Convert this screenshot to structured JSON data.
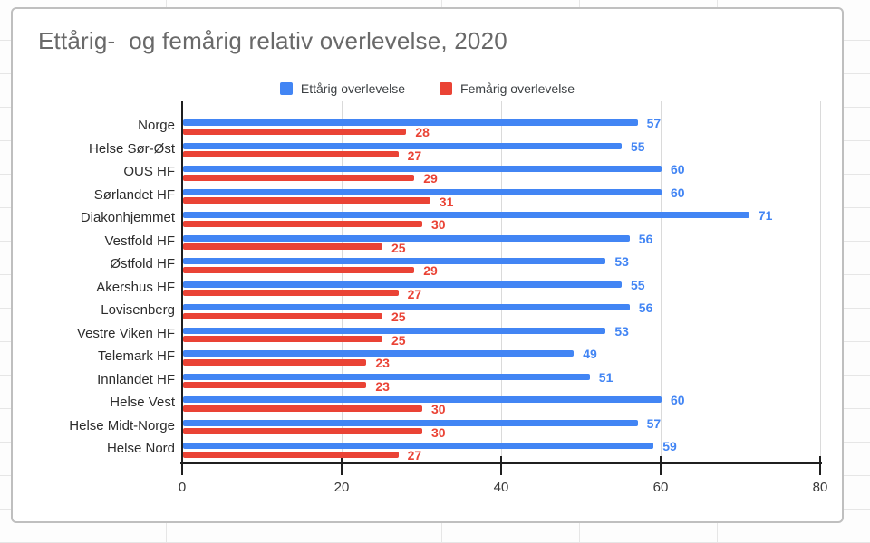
{
  "app": {
    "context": "spreadsheet-embedded-chart"
  },
  "chart_data": {
    "type": "bar",
    "orientation": "horizontal",
    "title": "Ettårig-  og femårig relativ overlevelse, 2020",
    "categories": [
      "Norge",
      "Helse Sør-Øst",
      "OUS HF",
      "Sørlandet HF",
      "Diakonhjemmet",
      "Vestfold HF",
      "Østfold HF",
      "Akershus HF",
      "Lovisenberg",
      "Vestre Viken HF",
      "Telemark HF",
      "Innlandet HF",
      "Helse Vest",
      "Helse Midt-Norge",
      "Helse Nord"
    ],
    "series": [
      {
        "name": "Ettårig overlevelse",
        "color": "#4285f4",
        "values": [
          57,
          55,
          60,
          60,
          71,
          56,
          53,
          55,
          56,
          53,
          49,
          51,
          60,
          57,
          59
        ]
      },
      {
        "name": "Femårig overlevelse",
        "color": "#ea4335",
        "values": [
          28,
          27,
          29,
          31,
          30,
          25,
          29,
          27,
          25,
          25,
          23,
          23,
          30,
          30,
          27
        ]
      }
    ],
    "xlabel": "",
    "ylabel": "",
    "xticks": [
      0,
      20,
      40,
      60,
      80
    ],
    "xlim": [
      0,
      80
    ],
    "grid": true,
    "legend_position": "top",
    "data_labels": true,
    "colors": {
      "axis": "#1f1f1f",
      "gridline": "#dadada",
      "title_text": "#696969",
      "category_text": "#2c2c2c",
      "legend_text": "#3c4043"
    }
  }
}
